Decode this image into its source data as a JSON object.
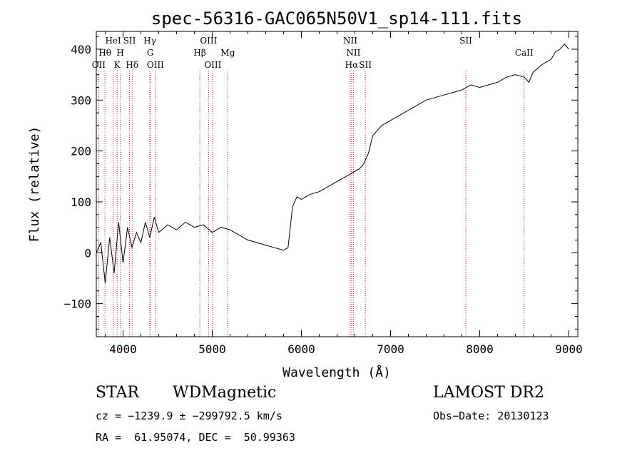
{
  "chart_data": {
    "type": "line",
    "title": "spec-56316-GAC065N50V1_sp14-111.fits",
    "xlabel": "Wavelength (Å)",
    "ylabel": "Flux (relative)",
    "xlim": [
      3700,
      9100
    ],
    "ylim": [
      -165,
      435
    ],
    "xticks": [
      4000,
      5000,
      6000,
      7000,
      8000,
      9000
    ],
    "yticks": [
      -100,
      0,
      100,
      200,
      300,
      400
    ],
    "grid": false,
    "series": [
      {
        "x": [
          3700,
          3750,
          3800,
          3850,
          3900,
          3950,
          4000,
          4050,
          4100,
          4150,
          4200,
          4250,
          4300,
          4350,
          4400,
          4500,
          4600,
          4700,
          4800,
          4900,
          5000,
          5100,
          5200,
          5300,
          5400,
          5500,
          5600,
          5700,
          5800,
          5850,
          5900,
          5950,
          6000,
          6100,
          6200,
          6300,
          6400,
          6500,
          6600,
          6650,
          6700,
          6750,
          6800,
          6900,
          7000,
          7100,
          7200,
          7300,
          7400,
          7500,
          7600,
          7700,
          7800,
          7900,
          8000,
          8100,
          8200,
          8300,
          8400,
          8500,
          8550,
          8600,
          8700,
          8800,
          8850,
          8900,
          8950,
          9000
        ],
        "y": [
          0,
          20,
          -60,
          30,
          -40,
          60,
          -20,
          50,
          10,
          40,
          20,
          60,
          30,
          70,
          40,
          55,
          45,
          60,
          50,
          55,
          40,
          50,
          45,
          35,
          25,
          20,
          15,
          10,
          5,
          10,
          90,
          110,
          105,
          115,
          120,
          130,
          140,
          150,
          160,
          165,
          175,
          195,
          230,
          250,
          260,
          270,
          280,
          290,
          300,
          305,
          310,
          315,
          320,
          330,
          325,
          330,
          335,
          345,
          350,
          345,
          335,
          355,
          370,
          380,
          395,
          400,
          410,
          400
        ]
      }
    ],
    "lines": [
      {
        "label": "OII",
        "x": 3727,
        "row": 3
      },
      {
        "label": "Hθ",
        "x": 3797,
        "row": 2
      },
      {
        "label": "HeI",
        "x": 3889,
        "row": 1
      },
      {
        "label": "K",
        "x": 3934,
        "row": 3
      },
      {
        "label": "H",
        "x": 3969,
        "row": 2
      },
      {
        "label": "SII",
        "x": 4072,
        "row": 1
      },
      {
        "label": "Hδ",
        "x": 4102,
        "row": 3
      },
      {
        "label": "Hγ",
        "x": 4300,
        "row": 1
      },
      {
        "label": "G",
        "x": 4305,
        "row": 2
      },
      {
        "label": "OIII",
        "x": 4363,
        "row": 3
      },
      {
        "label": "Hβ",
        "x": 4861,
        "row": 2
      },
      {
        "label": "OIII",
        "x": 4959,
        "row": 1
      },
      {
        "label": "OIII",
        "x": 5007,
        "row": 3
      },
      {
        "label": "Mg",
        "x": 5175,
        "row": 2
      },
      {
        "label": "NII",
        "x": 6548,
        "row": 1
      },
      {
        "label": "NII",
        "x": 6583,
        "row": 2
      },
      {
        "label": "Hα",
        "x": 6563,
        "row": 3
      },
      {
        "label": "SII",
        "x": 6717,
        "row": 3
      },
      {
        "label": "SII",
        "x": 7844,
        "row": 1
      },
      {
        "label": "CaII",
        "x": 8498,
        "row": 2
      }
    ]
  },
  "info": {
    "class": "STAR",
    "subclass": "WDMagnetic",
    "survey": "LAMOST DR2",
    "cz": "cz = −1239.9 ± −299792.5 km/s",
    "obs_date": "Obs−Date: 20130123",
    "radec": "RA =  61.95074, DEC =  50.99363"
  }
}
